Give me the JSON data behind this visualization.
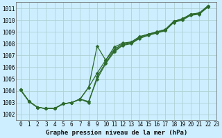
{
  "xlabel": "Graphe pression niveau de la mer (hPa)",
  "background_color": "#cceeff",
  "grid_color": "#aacccc",
  "line_color": "#2d6a2d",
  "xlim": [
    -0.5,
    23
  ],
  "ylim": [
    1001.5,
    1011.5
  ],
  "xtick_labels": [
    "0",
    "1",
    "2",
    "3",
    "4",
    "5",
    "6",
    "7",
    "8",
    "9",
    "10",
    "11",
    "12",
    "13",
    "14",
    "15",
    "16",
    "17",
    "18",
    "19",
    "20",
    "21",
    "22",
    "23"
  ],
  "ytick_vals": [
    1002,
    1003,
    1004,
    1005,
    1006,
    1007,
    1008,
    1009,
    1010,
    1011
  ],
  "series_a": [
    1004.1,
    1003.1,
    1002.6,
    1002.5,
    1002.5,
    1002.9,
    1003.0,
    1003.3,
    1004.3,
    1005.5,
    1006.6,
    1007.5,
    1008.0,
    1008.1,
    1008.6,
    1008.8,
    1009.0,
    1009.2,
    1009.9,
    1010.1,
    1010.5,
    1010.6,
    1011.2
  ],
  "series_b": [
    1004.1,
    1003.1,
    1002.6,
    1002.5,
    1002.5,
    1002.9,
    1003.0,
    1003.3,
    1003.0,
    1005.2,
    1006.4,
    1007.4,
    1007.9,
    1008.05,
    1008.5,
    1008.75,
    1008.95,
    1009.15,
    1009.85,
    1010.05,
    1010.45,
    1010.55,
    1011.15
  ],
  "series_c": [
    1004.1,
    1003.1,
    1002.6,
    1002.5,
    1002.5,
    1002.9,
    1003.0,
    1003.3,
    1003.1,
    1005.0,
    1006.3,
    1007.3,
    1007.85,
    1008.0,
    1008.45,
    1008.7,
    1008.9,
    1009.1,
    1009.8,
    1010.0,
    1010.4,
    1010.5,
    1011.1
  ],
  "series_d": [
    1004.1,
    1003.1,
    1002.6,
    1002.5,
    1002.5,
    1002.9,
    1003.0,
    1003.3,
    1004.3,
    1007.8,
    1006.6,
    1007.7,
    1008.05,
    1008.15,
    1008.6,
    1008.8,
    1009.0,
    1009.2,
    1009.9,
    1010.1,
    1010.5,
    1010.6,
    1011.2
  ],
  "marker_size": 2.5,
  "linewidth": 0.9,
  "tick_fontsize": 5.5,
  "xlabel_fontsize": 6.5
}
